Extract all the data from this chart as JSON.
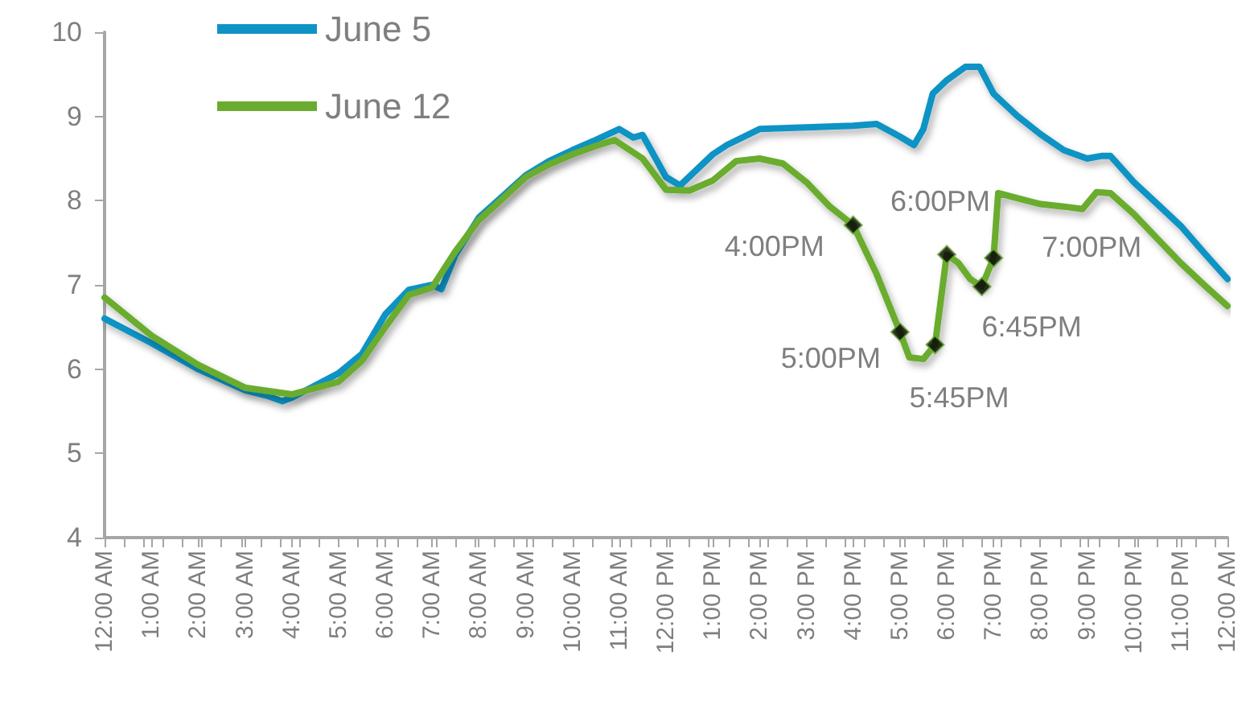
{
  "chart_data": {
    "type": "line",
    "legend": "top left",
    "grid": false,
    "marker": "none",
    "line_style": "solid",
    "ylim": [
      4,
      10
    ],
    "yticks": [
      4,
      5,
      6,
      7,
      8,
      9,
      10
    ],
    "xlim": [
      0,
      24
    ],
    "xticks": [
      {
        "value": 0,
        "label": "12:00 AM"
      },
      {
        "value": 1,
        "label": "1:00 AM"
      },
      {
        "value": 2,
        "label": "2:00 AM"
      },
      {
        "value": 3,
        "label": "3:00 AM"
      },
      {
        "value": 4,
        "label": "4:00 AM"
      },
      {
        "value": 5,
        "label": "5:00 AM"
      },
      {
        "value": 6,
        "label": "6:00 AM"
      },
      {
        "value": 7,
        "label": "7:00 AM"
      },
      {
        "value": 8,
        "label": "8:00 AM"
      },
      {
        "value": 9,
        "label": "9:00 AM"
      },
      {
        "value": 10,
        "label": "10:00 AM"
      },
      {
        "value": 11,
        "label": "11:00 AM"
      },
      {
        "value": 12,
        "label": "12:00 PM"
      },
      {
        "value": 13,
        "label": "1:00 PM"
      },
      {
        "value": 14,
        "label": "2:00 PM"
      },
      {
        "value": 15,
        "label": "3:00 PM"
      },
      {
        "value": 16,
        "label": "4:00 PM"
      },
      {
        "value": 17,
        "label": "5:00 PM"
      },
      {
        "value": 18,
        "label": "6:00 PM"
      },
      {
        "value": 19,
        "label": "7:00 PM"
      },
      {
        "value": 20,
        "label": "8:00 PM"
      },
      {
        "value": 21,
        "label": "9:00 PM"
      },
      {
        "value": 22,
        "label": "10:00 PM"
      },
      {
        "value": 23,
        "label": "11:00 PM"
      },
      {
        "value": 24,
        "label": "12:00 AM"
      }
    ],
    "series": [
      {
        "name": "June 5",
        "color": "#0e93c4",
        "x": [
          0,
          1,
          2,
          3,
          3.5,
          3.8,
          4,
          5,
          5.5,
          6,
          6.5,
          7,
          7.2,
          7.5,
          8,
          8.5,
          9,
          9.5,
          10,
          10.5,
          11,
          11.3,
          11.5,
          12,
          12.3,
          13,
          13.3,
          14,
          15,
          16,
          16.5,
          17,
          17.3,
          17.5,
          17.7,
          18,
          18.4,
          18.7,
          19,
          19.5,
          20,
          20.5,
          21,
          21.3,
          21.5,
          22,
          22.5,
          23,
          23.5,
          24
        ],
        "values": [
          6.6,
          6.31,
          6.0,
          5.75,
          5.68,
          5.62,
          5.66,
          5.95,
          6.18,
          6.65,
          6.94,
          7.0,
          6.95,
          7.36,
          7.8,
          8.05,
          8.3,
          8.47,
          8.6,
          8.72,
          8.85,
          8.75,
          8.78,
          8.28,
          8.18,
          8.55,
          8.66,
          8.85,
          8.87,
          8.89,
          8.91,
          8.76,
          8.66,
          8.85,
          9.27,
          9.43,
          9.59,
          9.59,
          9.27,
          9.01,
          8.79,
          8.6,
          8.5,
          8.53,
          8.53,
          8.22,
          7.96,
          7.7,
          7.38,
          7.07
        ]
      },
      {
        "name": "June 12",
        "color": "#6aac2f",
        "x": [
          0,
          1,
          2,
          3,
          4,
          5,
          5.5,
          6,
          6.5,
          7,
          7.5,
          8,
          8.5,
          9,
          9.5,
          10,
          10.5,
          10.9,
          11.5,
          12,
          12.5,
          13,
          13.5,
          14,
          14.5,
          15,
          15.5,
          16,
          16.5,
          17,
          17.2,
          17.5,
          17.75,
          18,
          18.25,
          18.5,
          18.75,
          19,
          19.1,
          19.5,
          20,
          20.5,
          20.9,
          21.2,
          21.5,
          22,
          22.5,
          23,
          23.5,
          24
        ],
        "values": [
          6.85,
          6.4,
          6.05,
          5.78,
          5.7,
          5.85,
          6.1,
          6.5,
          6.88,
          6.97,
          7.4,
          7.77,
          8.02,
          8.28,
          8.43,
          8.55,
          8.65,
          8.72,
          8.5,
          8.13,
          8.12,
          8.24,
          8.47,
          8.5,
          8.44,
          8.22,
          7.93,
          7.71,
          7.13,
          6.44,
          6.14,
          6.12,
          6.29,
          7.36,
          7.26,
          7.07,
          6.98,
          7.32,
          8.09,
          8.03,
          7.96,
          7.93,
          7.9,
          8.1,
          8.09,
          7.84,
          7.55,
          7.26,
          7.0,
          6.75
        ]
      },
      {
        "type": "scatter",
        "marker": "diamond",
        "color": "#000000",
        "x": [
          16,
          17,
          17.75,
          18,
          18.75,
          19
        ],
        "values": [
          7.71,
          6.44,
          6.29,
          7.36,
          6.98,
          7.32
        ]
      }
    ],
    "annotations": [
      {
        "text": "4:00PM",
        "x": 16,
        "y": 7.71
      },
      {
        "text": "5:00PM",
        "x": 17,
        "y": 6.44
      },
      {
        "text": "5:45PM",
        "x": 17.75,
        "y": 6.29
      },
      {
        "text": "6:00PM",
        "x": 18,
        "y": 7.36
      },
      {
        "text": "6:45PM",
        "x": 18.75,
        "y": 6.98
      },
      {
        "text": "7:00PM",
        "x": 19,
        "y": 7.32
      }
    ]
  }
}
